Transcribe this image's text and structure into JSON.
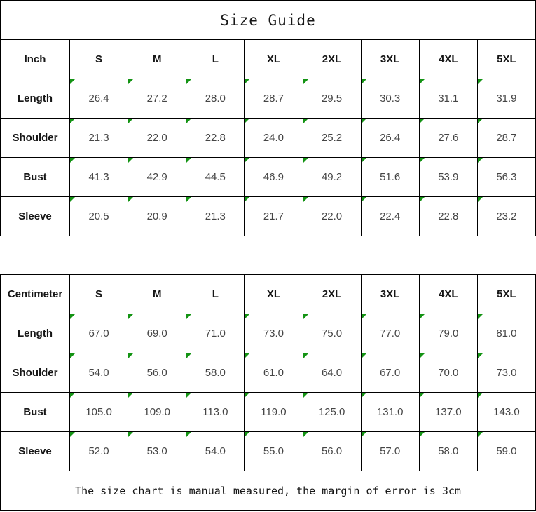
{
  "title": "Size Guide",
  "footer_note": "The size chart is manual measured, the margin of error is 3cm",
  "colors": {
    "border": "#000000",
    "flag_green": "#149414",
    "background": "#ffffff"
  },
  "chart_data": [
    {
      "type": "table",
      "unit": "Inch",
      "columns": [
        "Inch",
        "S",
        "M",
        "L",
        "XL",
        "2XL",
        "3XL",
        "4XL",
        "5XL"
      ],
      "rows": [
        {
          "label": "Length",
          "values": [
            "26.4",
            "27.2",
            "28.0",
            "28.7",
            "29.5",
            "30.3",
            "31.1",
            "31.9"
          ]
        },
        {
          "label": "Shoulder",
          "values": [
            "21.3",
            "22.0",
            "22.8",
            "24.0",
            "25.2",
            "26.4",
            "27.6",
            "28.7"
          ]
        },
        {
          "label": "Bust",
          "values": [
            "41.3",
            "42.9",
            "44.5",
            "46.9",
            "49.2",
            "51.6",
            "53.9",
            "56.3"
          ]
        },
        {
          "label": "Sleeve",
          "values": [
            "20.5",
            "20.9",
            "21.3",
            "21.7",
            "22.0",
            "22.4",
            "22.8",
            "23.2"
          ]
        }
      ]
    },
    {
      "type": "table",
      "unit": "Centimeter",
      "columns": [
        "Centimeter",
        "S",
        "M",
        "L",
        "XL",
        "2XL",
        "3XL",
        "4XL",
        "5XL"
      ],
      "rows": [
        {
          "label": "Length",
          "values": [
            "67.0",
            "69.0",
            "71.0",
            "73.0",
            "75.0",
            "77.0",
            "79.0",
            "81.0"
          ]
        },
        {
          "label": "Shoulder",
          "values": [
            "54.0",
            "56.0",
            "58.0",
            "61.0",
            "64.0",
            "67.0",
            "70.0",
            "73.0"
          ]
        },
        {
          "label": "Bust",
          "values": [
            "105.0",
            "109.0",
            "113.0",
            "119.0",
            "125.0",
            "131.0",
            "137.0",
            "143.0"
          ]
        },
        {
          "label": "Sleeve",
          "values": [
            "52.0",
            "53.0",
            "54.0",
            "55.0",
            "56.0",
            "57.0",
            "58.0",
            "59.0"
          ]
        }
      ]
    }
  ]
}
